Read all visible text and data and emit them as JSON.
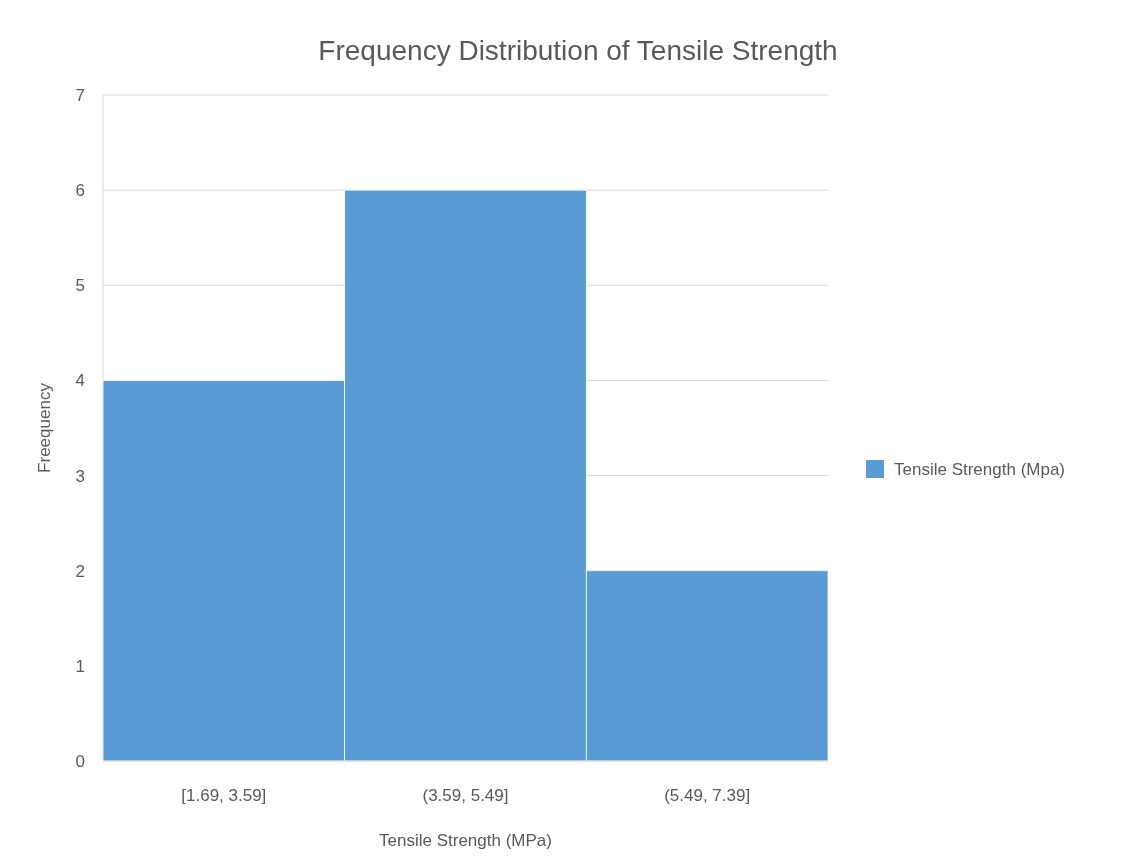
{
  "chart_data": {
    "type": "bar",
    "title": "Frequency Distribution of Tensile Strength",
    "xlabel": "Tensile Strength (MPa)",
    "ylabel": "Freequency",
    "categories": [
      "[1.69, 3.59]",
      "(3.59, 5.49]",
      "(5.49, 7.39]"
    ],
    "series": [
      {
        "name": "Tensile Strength (Mpa)",
        "color": "#5b9bd5",
        "values": [
          4,
          6,
          2
        ]
      }
    ],
    "ylim": [
      0,
      7
    ],
    "yticks": [
      0,
      1,
      2,
      3,
      4,
      5,
      6,
      7
    ],
    "grid": "y",
    "legend": "right"
  }
}
